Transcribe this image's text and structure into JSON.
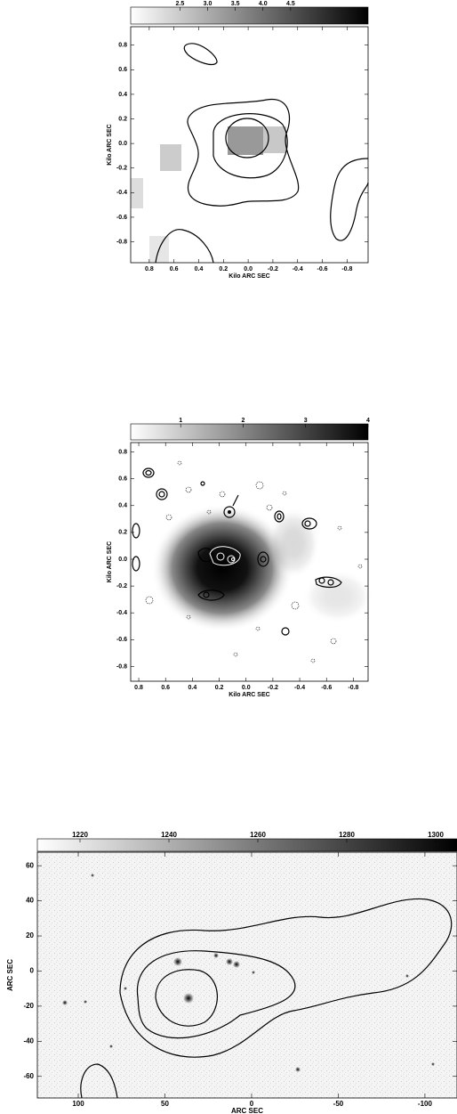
{
  "chart_data": [
    {
      "type": "image",
      "x_label": "Kilo ARC SEC",
      "y_label": "Kilo ARC SEC",
      "clim": [
        1.61,
        5.9
      ],
      "cticks": [
        2.5,
        {
          "value": 3,
          "label": "3.0"
        },
        3.5,
        {
          "value": 4,
          "label": "4.0"
        },
        4.5
      ],
      "xlim": [
        0.95,
        -0.97
      ],
      "xticks": [
        0.8,
        0.6,
        0.4,
        0.2,
        {
          "value": 0,
          "label": "0.0"
        },
        -0.2,
        -0.4,
        -0.6,
        -0.8
      ],
      "ylim": [
        -0.97,
        0.95
      ],
      "yticks": [
        0.8,
        0.6,
        0.4,
        0.2,
        {
          "value": 0,
          "label": "0.0"
        },
        -0.2,
        -0.4,
        -0.6,
        -0.8
      ]
    },
    {
      "type": "image",
      "x_label": "Kilo ARC SEC",
      "y_label": "Kilo ARC SEC",
      "clim": [
        0.2,
        4.0
      ],
      "cticks": [
        1,
        2,
        3,
        4
      ],
      "xlim": [
        0.86,
        -0.91
      ],
      "xticks": [
        0.8,
        0.6,
        0.4,
        0.2,
        {
          "value": 0,
          "label": "0.0"
        },
        -0.2,
        -0.4,
        -0.6,
        -0.8
      ],
      "ylim": [
        -0.91,
        0.87
      ],
      "yticks": [
        0.8,
        0.6,
        0.4,
        0.2,
        {
          "value": 0,
          "label": "0.0"
        },
        -0.2,
        -0.4,
        -0.6,
        -0.8
      ]
    },
    {
      "type": "image",
      "x_label": "ARC SEC",
      "y_label": "ARC SEC",
      "clim": [
        1210.4,
        1304.8
      ],
      "cticks": [
        1220,
        1240,
        1260,
        1280,
        1300
      ],
      "xlim": [
        123.6,
        -118.5
      ],
      "xticks": [
        100,
        50,
        0,
        -50,
        -100
      ],
      "ylim": [
        -72.3,
        67.7
      ],
      "yticks": [
        60,
        40,
        20,
        0,
        -20,
        -40,
        -60
      ]
    }
  ]
}
